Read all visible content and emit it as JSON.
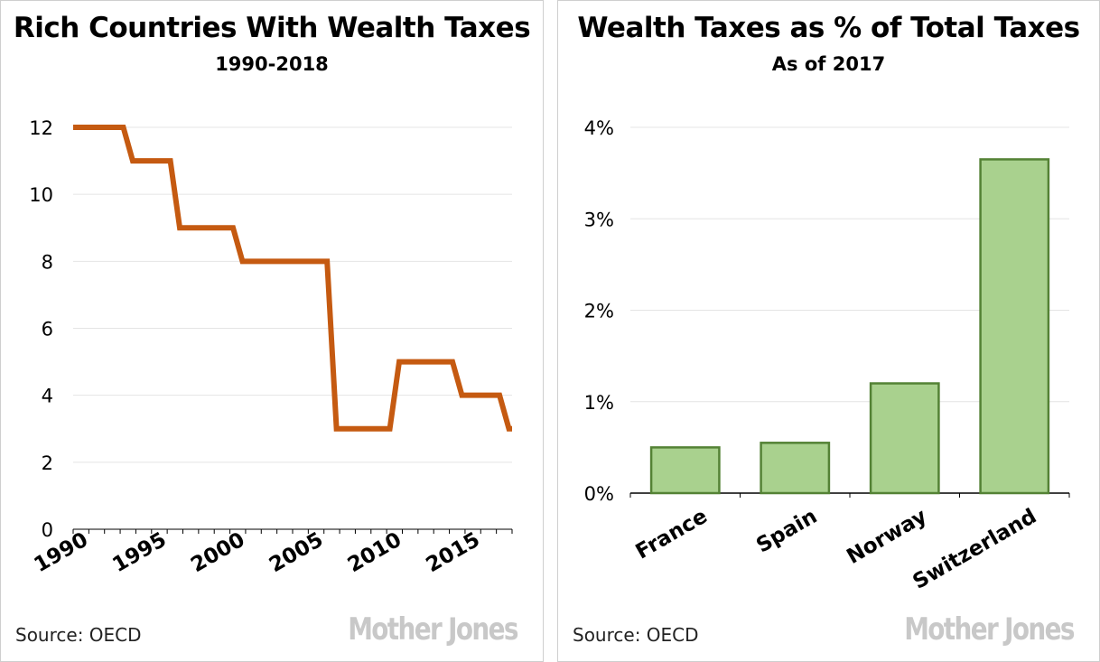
{
  "chart_data": [
    {
      "type": "line",
      "title": "Rich Countries With Wealth Taxes",
      "subtitle": "1990-2018",
      "xlabel": "",
      "ylabel": "",
      "x": [
        1990,
        1991,
        1992,
        1993,
        1994,
        1995,
        1996,
        1997,
        1998,
        1999,
        2000,
        2001,
        2002,
        2003,
        2004,
        2005,
        2006,
        2007,
        2008,
        2009,
        2010,
        2011,
        2012,
        2013,
        2014,
        2015,
        2016,
        2017,
        2018
      ],
      "series": [
        {
          "values": [
            12,
            12,
            12,
            12,
            11,
            11,
            11,
            9,
            9,
            9,
            9,
            8,
            8,
            8,
            8,
            8,
            8,
            3,
            3,
            3,
            3,
            5,
            5,
            5,
            5,
            4,
            4,
            4,
            3
          ]
        }
      ],
      "xticks": [
        "1990",
        "1995",
        "2000",
        "2005",
        "2010",
        "2015"
      ],
      "yticks": [
        "0",
        "2",
        "4",
        "6",
        "8",
        "10",
        "12"
      ],
      "ylim": [
        0,
        12
      ],
      "xlim": [
        1990,
        2018
      ],
      "grid": true,
      "color": "#c55a11"
    },
    {
      "type": "bar",
      "title": "Wealth Taxes as % of Total Taxes",
      "subtitle": "As of 2017",
      "xlabel": "",
      "ylabel": "",
      "categories": [
        "France",
        "Spain",
        "Norway",
        "Switzerland"
      ],
      "values": [
        0.5,
        0.55,
        1.2,
        3.65
      ],
      "yticks": [
        "0%",
        "1%",
        "2%",
        "3%",
        "4%"
      ],
      "ylim": [
        0,
        4
      ],
      "grid": true,
      "fill": "#a9d18e",
      "stroke": "#548235"
    }
  ],
  "footer": {
    "left_source": "Source:  OECD",
    "right_source": "Source:  OECD",
    "brand": "Mother Jones"
  }
}
